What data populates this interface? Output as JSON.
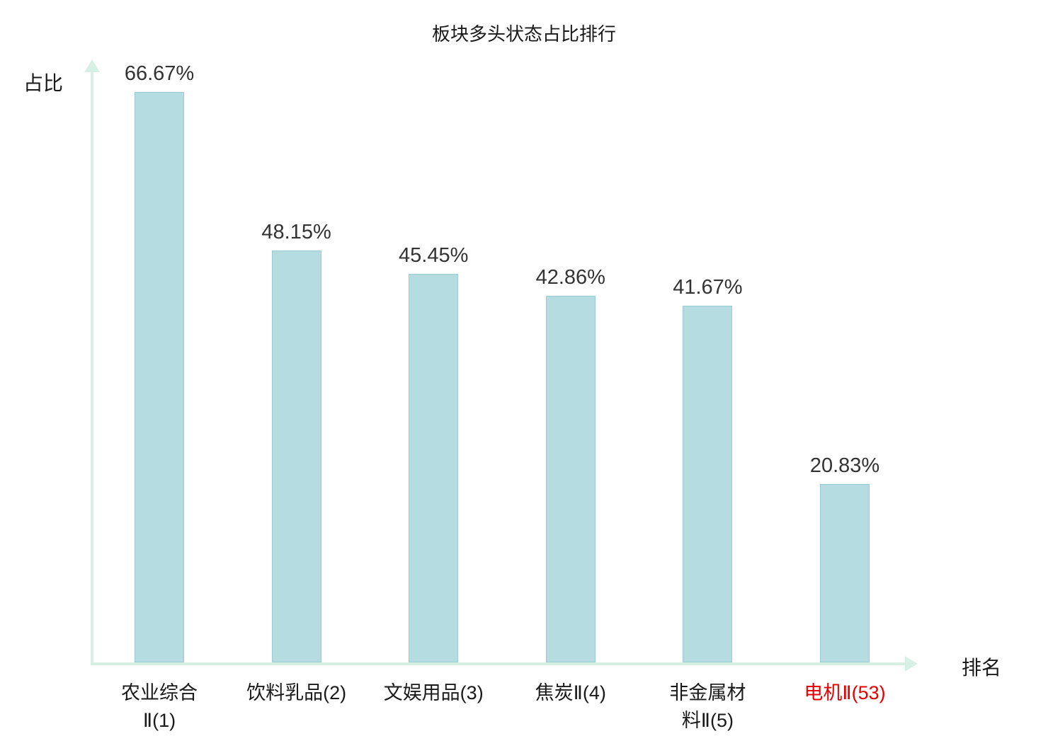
{
  "title": "板块多头状态占比排行",
  "y_axis_label": "占比",
  "x_axis_label": "排名",
  "colors": {
    "bar_fill": "#b4dce1",
    "bar_border": "#96ccd2",
    "axis": "#d8efe6",
    "value_label": "#333333",
    "category_label": "#1a1a1a",
    "highlight": "#e60000"
  },
  "chart_data": {
    "type": "bar",
    "title": "板块多头状态占比排行",
    "xlabel": "排名",
    "ylabel": "占比",
    "ylim": [
      0,
      70
    ],
    "grid": false,
    "legend": false,
    "categories": [
      "农业综合Ⅱ(1)",
      "饮料乳品(2)",
      "文娱用品(3)",
      "焦炭Ⅱ(4)",
      "非金属材料Ⅱ(5)",
      "电机Ⅱ(53)"
    ],
    "category_lines": [
      [
        "农业综合",
        "Ⅱ(1)"
      ],
      [
        "饮料乳品(2)"
      ],
      [
        "文娱用品(3)"
      ],
      [
        "焦炭Ⅱ(4)"
      ],
      [
        "非金属材",
        "料Ⅱ(5)"
      ],
      [
        "电机Ⅱ(53)"
      ]
    ],
    "values": [
      66.67,
      48.15,
      45.45,
      42.86,
      41.67,
      20.83
    ],
    "value_labels": [
      "66.67%",
      "48.15%",
      "45.45%",
      "42.86%",
      "41.67%",
      "20.83%"
    ],
    "highlighted_index": 5
  }
}
